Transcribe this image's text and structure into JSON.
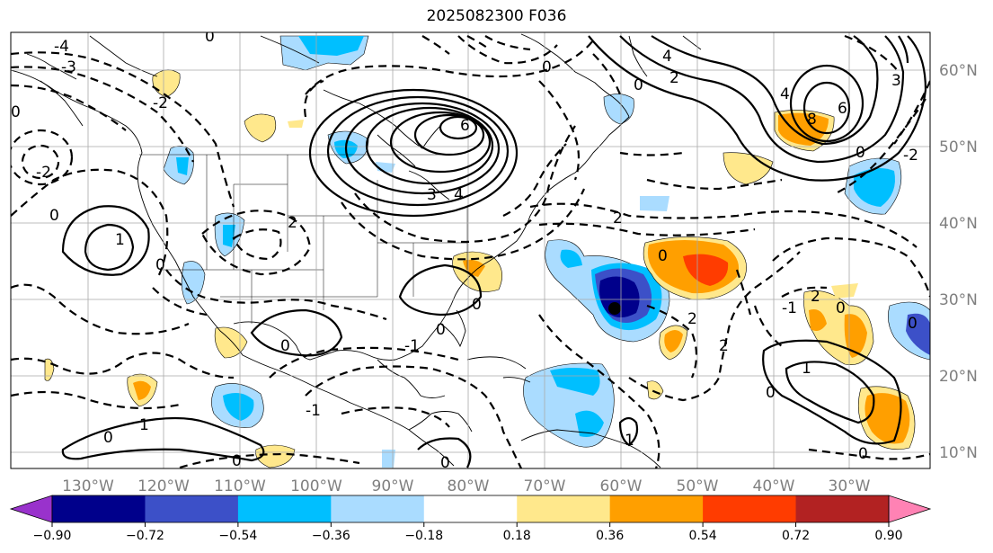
{
  "title": "2025082300 F036",
  "map": {
    "lon_labels": [
      "130°W",
      "120°W",
      "110°W",
      "100°W",
      "90°W",
      "80°W",
      "70°W",
      "60°W",
      "50°W",
      "40°W",
      "30°W"
    ],
    "lat_labels": [
      "60°N",
      "50°N",
      "40°N",
      "30°N",
      "20°N",
      "10°N"
    ],
    "contour_labels": [
      "-4",
      "-3",
      "-2",
      "-1",
      "0",
      "1",
      "2",
      "3",
      "4",
      "6",
      "8"
    ]
  },
  "colorbar": {
    "tick_labels": [
      "−0.90",
      "−0.72",
      "−0.54",
      "−0.36",
      "−0.18",
      "0.18",
      "0.36",
      "0.54",
      "0.72",
      "0.90"
    ],
    "colors": {
      "under": "#9932cc",
      "bins": [
        "#00008b",
        "#3c50c8",
        "#00bfff",
        "#aadcff",
        "#ffffff",
        "#ffe88c",
        "#ff9f00",
        "#ff3c00",
        "#b22222"
      ],
      "over": "#ff82b4"
    }
  }
}
